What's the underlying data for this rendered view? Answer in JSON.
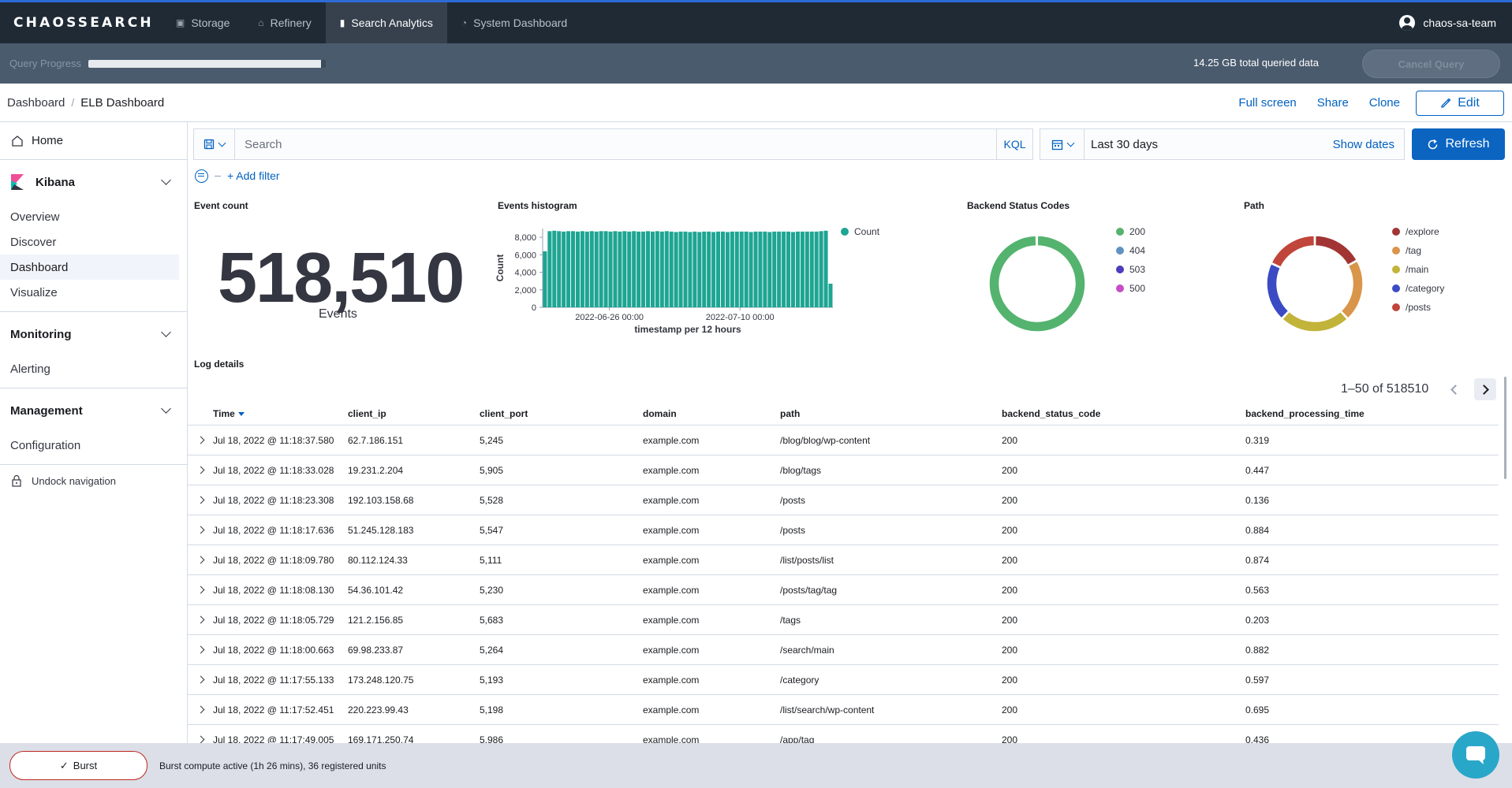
{
  "topnav": {
    "logo": "CHAOSSEARCH",
    "tabs": [
      {
        "label": "Storage",
        "icon": "storage-icon"
      },
      {
        "label": "Refinery",
        "icon": "refinery-icon"
      },
      {
        "label": "Search Analytics",
        "icon": "chart-icon"
      },
      {
        "label": "System Dashboard",
        "icon": "dashboard-icon"
      }
    ],
    "user": "chaos-sa-team"
  },
  "query": {
    "label": "Query Progress",
    "progress": 0.98,
    "total": "14.25 GB total queried data",
    "cancel_label": "Cancel Query"
  },
  "breadcrumb": {
    "parent": "Dashboard",
    "current": "ELB Dashboard"
  },
  "actions": {
    "fullscreen": "Full screen",
    "share": "Share",
    "clone": "Clone",
    "edit": "Edit"
  },
  "sidebar": {
    "home": "Home",
    "kibana": {
      "title": "Kibana",
      "items": [
        "Overview",
        "Discover",
        "Dashboard",
        "Visualize"
      ]
    },
    "monitoring": {
      "title": "Monitoring",
      "items": [
        "Alerting"
      ]
    },
    "management": {
      "title": "Management",
      "items": [
        "Configuration"
      ]
    },
    "undock": "Undock navigation"
  },
  "search": {
    "placeholder": "Search",
    "kql": "KQL",
    "date_range": "Last 30 days",
    "show_dates": "Show dates",
    "refresh": "Refresh",
    "add_filter": "+ Add filter"
  },
  "panels": {
    "event_count": {
      "title": "Event count",
      "value": "518,510",
      "label": "Events"
    },
    "histogram": {
      "title": "Events histogram"
    },
    "status_codes": {
      "title": "Backend Status Codes"
    },
    "path": {
      "title": "Path"
    },
    "log_details": {
      "title": "Log details"
    }
  },
  "chart_data": [
    {
      "type": "bar",
      "title": "Events histogram",
      "xlabel": "timestamp per 12 hours",
      "ylabel": "Count",
      "ylim": [
        0,
        9000
      ],
      "yticks": [
        "0",
        "2,000",
        "4,000",
        "6,000",
        "8,000"
      ],
      "xticks": [
        "2022-06-26 00:00",
        "2022-07-10 00:00"
      ],
      "series": [
        {
          "name": "Count",
          "color": "#1ea593"
        }
      ],
      "values": [
        6400,
        8700,
        8750,
        8700,
        8650,
        8700,
        8700,
        8650,
        8700,
        8650,
        8700,
        8650,
        8700,
        8700,
        8650,
        8700,
        8650,
        8700,
        8650,
        8700,
        8650,
        8650,
        8700,
        8650,
        8700,
        8650,
        8700,
        8650,
        8600,
        8650,
        8650,
        8600,
        8650,
        8600,
        8650,
        8650,
        8600,
        8650,
        8650,
        8600,
        8650,
        8650,
        8650,
        8650,
        8600,
        8650,
        8650,
        8650,
        8600,
        8650,
        8650,
        8650,
        8650,
        8600,
        8650,
        8650,
        8650,
        8650,
        8650,
        8700,
        8750,
        2700
      ],
      "legend": "top-right"
    },
    {
      "type": "pie",
      "title": "Backend Status Codes",
      "labels": [
        "200",
        "404",
        "503",
        "500"
      ],
      "values": [
        99.7,
        0.1,
        0.1,
        0.1
      ],
      "colors": [
        "#54b36e",
        "#6092c0",
        "#4c3dbd",
        "#c54ec6"
      ],
      "legend": "right"
    },
    {
      "type": "pie",
      "title": "Path",
      "labels": [
        "/explore",
        "/tag",
        "/main",
        "/category",
        "/posts"
      ],
      "values": [
        17,
        21,
        24,
        20,
        18
      ],
      "colors": [
        "#a23434",
        "#d9954a",
        "#c2b33a",
        "#3b4bc4",
        "#c0453a"
      ],
      "legend": "right"
    }
  ],
  "table": {
    "pager": "1–50 of 518510",
    "columns": [
      "Time",
      "client_ip",
      "client_port",
      "domain",
      "path",
      "backend_status_code",
      "backend_processing_time"
    ],
    "rows": [
      [
        "Jul 18, 2022 @ 11:18:37.580",
        "62.7.186.151",
        "5,245",
        "example.com",
        "/blog/blog/wp-content",
        "200",
        "0.319"
      ],
      [
        "Jul 18, 2022 @ 11:18:33.028",
        "19.231.2.204",
        "5,905",
        "example.com",
        "/blog/tags",
        "200",
        "0.447"
      ],
      [
        "Jul 18, 2022 @ 11:18:23.308",
        "192.103.158.68",
        "5,528",
        "example.com",
        "/posts",
        "200",
        "0.136"
      ],
      [
        "Jul 18, 2022 @ 11:18:17.636",
        "51.245.128.183",
        "5,547",
        "example.com",
        "/posts",
        "200",
        "0.884"
      ],
      [
        "Jul 18, 2022 @ 11:18:09.780",
        "80.112.124.33",
        "5,111",
        "example.com",
        "/list/posts/list",
        "200",
        "0.874"
      ],
      [
        "Jul 18, 2022 @ 11:18:08.130",
        "54.36.101.42",
        "5,230",
        "example.com",
        "/posts/tag/tag",
        "200",
        "0.563"
      ],
      [
        "Jul 18, 2022 @ 11:18:05.729",
        "121.2.156.85",
        "5,683",
        "example.com",
        "/tags",
        "200",
        "0.203"
      ],
      [
        "Jul 18, 2022 @ 11:18:00.663",
        "69.98.233.87",
        "5,264",
        "example.com",
        "/search/main",
        "200",
        "0.882"
      ],
      [
        "Jul 18, 2022 @ 11:17:55.133",
        "173.248.120.75",
        "5,193",
        "example.com",
        "/category",
        "200",
        "0.597"
      ],
      [
        "Jul 18, 2022 @ 11:17:52.451",
        "220.223.99.43",
        "5,198",
        "example.com",
        "/list/search/wp-content",
        "200",
        "0.695"
      ],
      [
        "Jul 18, 2022 @ 11:17:49.005",
        "169.171.250.74",
        "5,986",
        "example.com",
        "/app/tag",
        "200",
        "0.436"
      ]
    ]
  },
  "footer": {
    "burst_label": "Burst",
    "burst_text": "Burst compute active (1h 26 mins), 36 registered units"
  }
}
